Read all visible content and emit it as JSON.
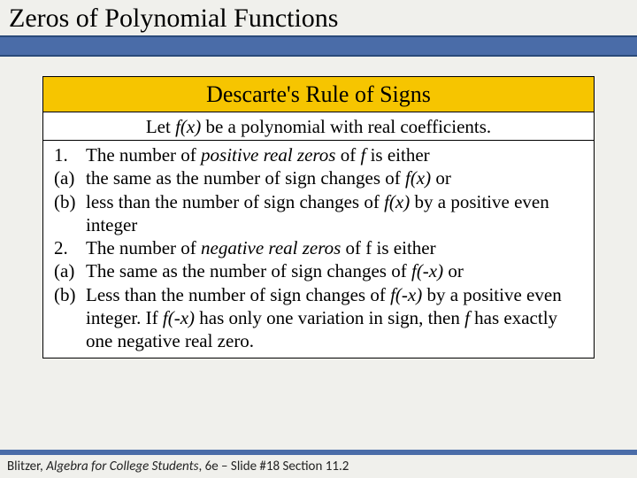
{
  "title": "Zeros of Polynomial Functions",
  "box": {
    "heading": "Descarte's Rule of Signs",
    "intro_pre": "Let ",
    "intro_fx": "f(x)",
    "intro_post": " be a polynomial with real coefficients.",
    "rows": [
      {
        "label": "1.",
        "pre": "The number of ",
        "em": "positive real zeros",
        "mid": " of ",
        "fvar": "f",
        "post": " is either"
      },
      {
        "label": "(a)",
        "pre": "the same as the number of sign changes of ",
        "fvar": "f(x)",
        "post": " or"
      },
      {
        "label": "(b)",
        "pre": "less than the number of sign changes of ",
        "fvar": "f(x)",
        "post": " by a positive even integer"
      },
      {
        "label": "2.",
        "pre": "The number of ",
        "em": "negative real zeros",
        "mid": " of f is either"
      },
      {
        "label": "(a)",
        "pre": "The same as the number of sign changes of ",
        "fvar": "f(-x)",
        "post": " or"
      },
      {
        "label": "(b)",
        "pre": "Less than the number of sign changes of ",
        "fvar": "f(-x)",
        "post1": " by a positive even integer.  If ",
        "fvar2": "f(-x)",
        "post2": " has only one variation in sign, then ",
        "fvar3": "f",
        "post3": " has exactly one negative real zero."
      }
    ]
  },
  "footer": {
    "author": "Blitzer, ",
    "book": "Algebra for College Students",
    "rest": ", 6e – Slide #18 Section 11.2"
  },
  "colors": {
    "bar": "#4a6ca8",
    "gold": "#f6c500",
    "bg": "#f0f0ec"
  }
}
